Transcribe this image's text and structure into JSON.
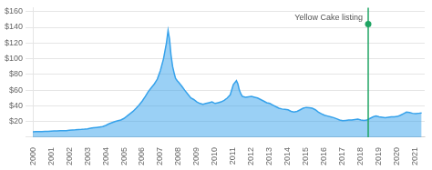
{
  "chart_data": {
    "type": "area",
    "x": [
      2000.0,
      2000.17,
      2000.33,
      2000.5,
      2000.67,
      2000.83,
      2001.0,
      2001.17,
      2001.33,
      2001.5,
      2001.67,
      2001.83,
      2002.0,
      2002.17,
      2002.33,
      2002.5,
      2002.67,
      2002.83,
      2003.0,
      2003.17,
      2003.33,
      2003.5,
      2003.67,
      2003.83,
      2004.0,
      2004.17,
      2004.33,
      2004.5,
      2004.67,
      2004.83,
      2005.0,
      2005.17,
      2005.33,
      2005.5,
      2005.67,
      2005.83,
      2006.0,
      2006.17,
      2006.33,
      2006.5,
      2006.67,
      2006.83,
      2007.0,
      2007.17,
      2007.33,
      2007.42,
      2007.5,
      2007.58,
      2007.67,
      2007.75,
      2007.83,
      2007.92,
      2008.0,
      2008.17,
      2008.33,
      2008.5,
      2008.67,
      2008.83,
      2009.0,
      2009.17,
      2009.33,
      2009.5,
      2009.67,
      2009.83,
      2010.0,
      2010.17,
      2010.33,
      2010.5,
      2010.67,
      2010.83,
      2011.0,
      2011.17,
      2011.25,
      2011.33,
      2011.42,
      2011.5,
      2011.67,
      2011.83,
      2012.0,
      2012.17,
      2012.33,
      2012.5,
      2012.67,
      2012.83,
      2013.0,
      2013.17,
      2013.33,
      2013.5,
      2013.67,
      2013.83,
      2014.0,
      2014.17,
      2014.33,
      2014.5,
      2014.67,
      2014.83,
      2015.0,
      2015.17,
      2015.33,
      2015.5,
      2015.67,
      2015.83,
      2016.0,
      2016.17,
      2016.33,
      2016.5,
      2016.67,
      2016.83,
      2017.0,
      2017.17,
      2017.33,
      2017.5,
      2017.67,
      2017.83,
      2018.0,
      2018.17,
      2018.33,
      2018.5,
      2018.67,
      2018.83,
      2019.0,
      2019.17,
      2019.33,
      2019.5,
      2019.67,
      2019.83,
      2020.0,
      2020.17,
      2020.33,
      2020.5,
      2020.67,
      2020.83,
      2021.0,
      2021.17,
      2021.33
    ],
    "values": [
      7.0,
      7.1,
      7.2,
      7.3,
      7.4,
      7.5,
      7.8,
      8.0,
      8.2,
      8.3,
      8.4,
      8.5,
      9.0,
      9.3,
      9.5,
      9.8,
      10.0,
      10.3,
      10.8,
      11.5,
      12.0,
      12.5,
      13.0,
      13.5,
      15.0,
      17.0,
      18.5,
      20.0,
      21.0,
      22.0,
      24.0,
      27.0,
      30.0,
      33.0,
      37.0,
      41.0,
      46.0,
      52.0,
      58.0,
      63.0,
      68.0,
      74.0,
      85.0,
      100.0,
      120.0,
      136.0,
      125.0,
      105.0,
      90.0,
      82.0,
      75.0,
      72.0,
      70.0,
      65.0,
      60.0,
      55.0,
      50.0,
      48.0,
      45.0,
      43.0,
      42.0,
      43.0,
      44.0,
      45.0,
      43.0,
      44.0,
      45.0,
      47.0,
      50.0,
      54.0,
      67.0,
      72.0,
      68.0,
      60.0,
      55.0,
      52.0,
      51.0,
      51.5,
      52.0,
      51.0,
      50.0,
      48.0,
      46.0,
      44.0,
      43.0,
      41.0,
      39.0,
      37.0,
      36.0,
      35.5,
      35.0,
      33.0,
      32.0,
      33.0,
      35.0,
      37.0,
      38.0,
      37.5,
      37.0,
      35.0,
      32.0,
      30.0,
      28.0,
      27.0,
      26.0,
      25.0,
      23.5,
      22.0,
      21.0,
      21.5,
      22.0,
      22.0,
      22.5,
      23.0,
      22.0,
      21.5,
      22.0,
      24.0,
      26.0,
      27.0,
      26.0,
      25.5,
      25.0,
      25.5,
      26.0,
      26.0,
      26.5,
      28.0,
      30.0,
      32.0,
      31.5,
      30.5,
      30.0,
      30.5,
      31.0
    ],
    "xlim": [
      2000,
      2021.5
    ],
    "xticks": [
      2000,
      2001,
      2002,
      2003,
      2004,
      2005,
      2006,
      2007,
      2008,
      2009,
      2010,
      2011,
      2012,
      2013,
      2014,
      2015,
      2016,
      2017,
      2018,
      2019,
      2020,
      2021
    ],
    "ylim": [
      0,
      165
    ],
    "yticks": [
      {
        "value": 0,
        "label": ""
      },
      {
        "value": 20,
        "label": "$20"
      },
      {
        "value": 40,
        "label": "$40"
      },
      {
        "value": 60,
        "label": "$60"
      },
      {
        "value": 80,
        "label": "$80"
      },
      {
        "value": 100,
        "label": "$100"
      },
      {
        "value": 120,
        "label": "$120"
      },
      {
        "value": 140,
        "label": "$140"
      },
      {
        "value": 160,
        "label": "$160"
      }
    ],
    "grid": "y",
    "annotation": {
      "text": "Yellow Cake listing",
      "x": 2018.4,
      "y": 144,
      "color": "#1fa463"
    }
  }
}
